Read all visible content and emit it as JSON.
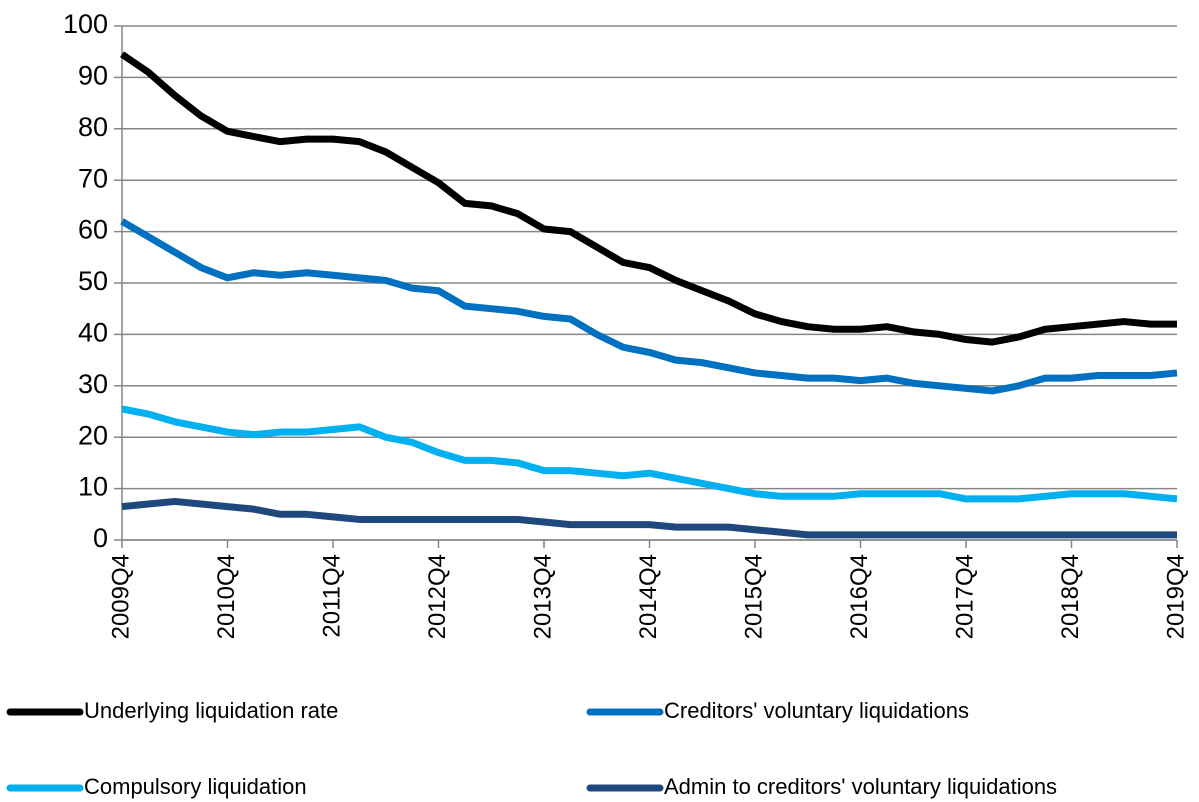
{
  "chart_data": {
    "type": "line",
    "categories": [
      "2009Q4",
      null,
      null,
      null,
      "2010Q4",
      null,
      null,
      null,
      "2011Q4",
      null,
      null,
      null,
      "2012Q4",
      null,
      null,
      null,
      "2013Q4",
      null,
      null,
      null,
      "2014Q4",
      null,
      null,
      null,
      "2015Q4",
      null,
      null,
      null,
      "2016Q4",
      null,
      null,
      null,
      "2017Q4",
      null,
      null,
      null,
      "2018Q4",
      null,
      null,
      null,
      "2019Q4"
    ],
    "series": [
      {
        "name": "Underlying liquidation rate",
        "color": "#000000",
        "values": [
          94.5,
          91,
          86.5,
          82.5,
          79.5,
          78.5,
          77.5,
          78,
          78,
          77.5,
          75.5,
          72.5,
          69.5,
          65.5,
          65,
          63.5,
          60.5,
          60,
          57,
          54,
          53,
          50.5,
          48.5,
          46.5,
          44,
          42.5,
          41.5,
          41,
          41,
          41.5,
          40.5,
          40,
          39,
          38.5,
          39.5,
          41,
          41.5,
          42,
          42.5,
          42,
          42
        ]
      },
      {
        "name": "Creditors' voluntary liquidations",
        "color": "#0070c0",
        "values": [
          62,
          59,
          56,
          53,
          51,
          52,
          51.5,
          52,
          51.5,
          51,
          50.5,
          49,
          48.5,
          45.5,
          45,
          44.5,
          43.5,
          43,
          40,
          37.5,
          36.5,
          35,
          34.5,
          33.5,
          32.5,
          32,
          31.5,
          31.5,
          31,
          31.5,
          30.5,
          30,
          29.5,
          29,
          30,
          31.5,
          31.5,
          32,
          32,
          32,
          32.5
        ]
      },
      {
        "name": "Compulsory liquidation",
        "color": "#00b0f0",
        "values": [
          25.5,
          24.5,
          23,
          22,
          21,
          20.5,
          21,
          21,
          21.5,
          22,
          20,
          19,
          17,
          15.5,
          15.5,
          15,
          13.5,
          13.5,
          13,
          12.5,
          13,
          12,
          11,
          10,
          9,
          8.5,
          8.5,
          8.5,
          9,
          9,
          9,
          9,
          8,
          8,
          8,
          8.5,
          9,
          9,
          9,
          8.5,
          8
        ]
      },
      {
        "name": "Admin to creditors' voluntary liquidations",
        "color": "#1f497d",
        "values": [
          6.5,
          7,
          7.5,
          7,
          6.5,
          6,
          5,
          5,
          4.5,
          4,
          4,
          4,
          4,
          4,
          4,
          4,
          3.5,
          3,
          3,
          3,
          3,
          2.5,
          2.5,
          2.5,
          2,
          1.5,
          1,
          1,
          1,
          1,
          1,
          1,
          1,
          1,
          1,
          1,
          1,
          1,
          1,
          1,
          1
        ]
      }
    ],
    "ylim": [
      0,
      100
    ],
    "yticks": [
      0,
      10,
      20,
      30,
      40,
      50,
      60,
      70,
      80,
      90,
      100
    ],
    "grid": true
  }
}
